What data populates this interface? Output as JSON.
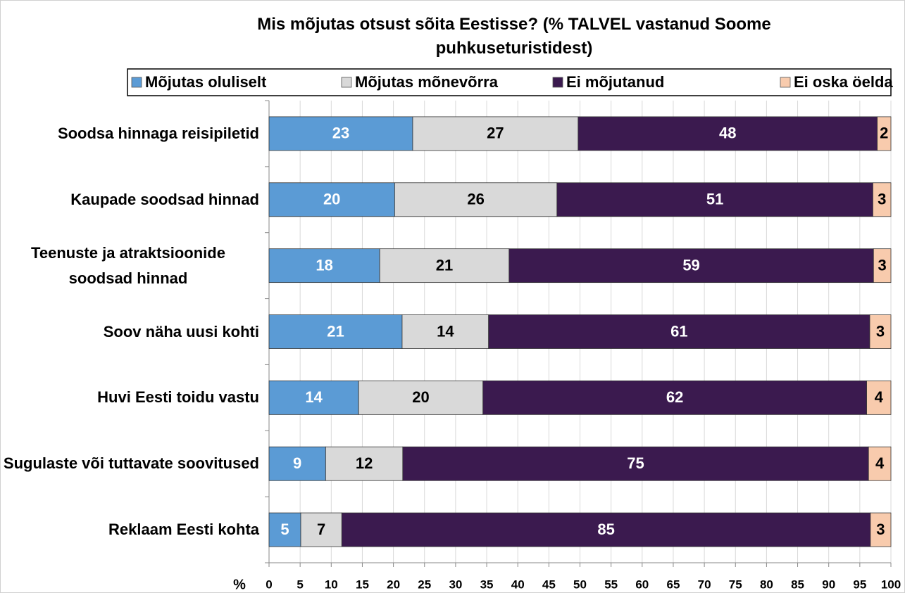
{
  "chart_data": {
    "type": "stacked-bar-horizontal",
    "title": "Mis mõjutas otsust sõita Eestisse? (% TALVEL vastanud Soome puhkuseturistidest)",
    "x_label": "%",
    "categories": [
      "Soodsa hinnaga reisipiletid",
      "Kaupade soodsad hinnad",
      "Teenuste ja atraktsioonide soodsad hinnad",
      "Soov näha uusi kohti",
      "Huvi Eesti toidu vastu",
      "Sugulaste või tuttavate soovitused",
      "Reklaam Eesti kohta"
    ],
    "series": [
      {
        "name": "Mõjutas oluliselt",
        "color": "#5b9bd5",
        "label_color": "#ffffff",
        "values": [
          23.1,
          20.2,
          17.8,
          21.4,
          14.4,
          9.1,
          5.1
        ],
        "value_labels": [
          "23",
          "20",
          "18",
          "21",
          "14",
          "9",
          "5"
        ]
      },
      {
        "name": "Mõjutas mõnevõrra",
        "color": "#d9d9d9",
        "label_color": "#000000",
        "values": [
          26.6,
          26.1,
          20.8,
          13.9,
          20.0,
          12.4,
          6.6
        ],
        "value_labels": [
          "27",
          "26",
          "21",
          "14",
          "20",
          "12",
          "7"
        ]
      },
      {
        "name": "Ei mõjutanud",
        "color": "#3b1a4f",
        "label_color": "#ffffff",
        "values": [
          48.1,
          50.8,
          58.6,
          61.3,
          61.7,
          74.9,
          85.0
        ],
        "value_labels": [
          "48",
          "51",
          "59",
          "61",
          "62",
          "75",
          "85"
        ]
      },
      {
        "name": "Ei oska öelda",
        "color": "#f8cbad",
        "label_color": "#000000",
        "values": [
          2.2,
          2.9,
          2.8,
          3.4,
          3.9,
          3.6,
          3.3
        ],
        "value_labels": [
          "2",
          "3",
          "3",
          "3",
          "4",
          "4",
          "3"
        ]
      }
    ],
    "xlim": [
      0,
      100
    ],
    "xticks": [
      0,
      5,
      10,
      15,
      20,
      25,
      30,
      35,
      40,
      45,
      50,
      55,
      60,
      65,
      70,
      75,
      80,
      85,
      90,
      95,
      100
    ],
    "grid": true,
    "legend": "top"
  }
}
